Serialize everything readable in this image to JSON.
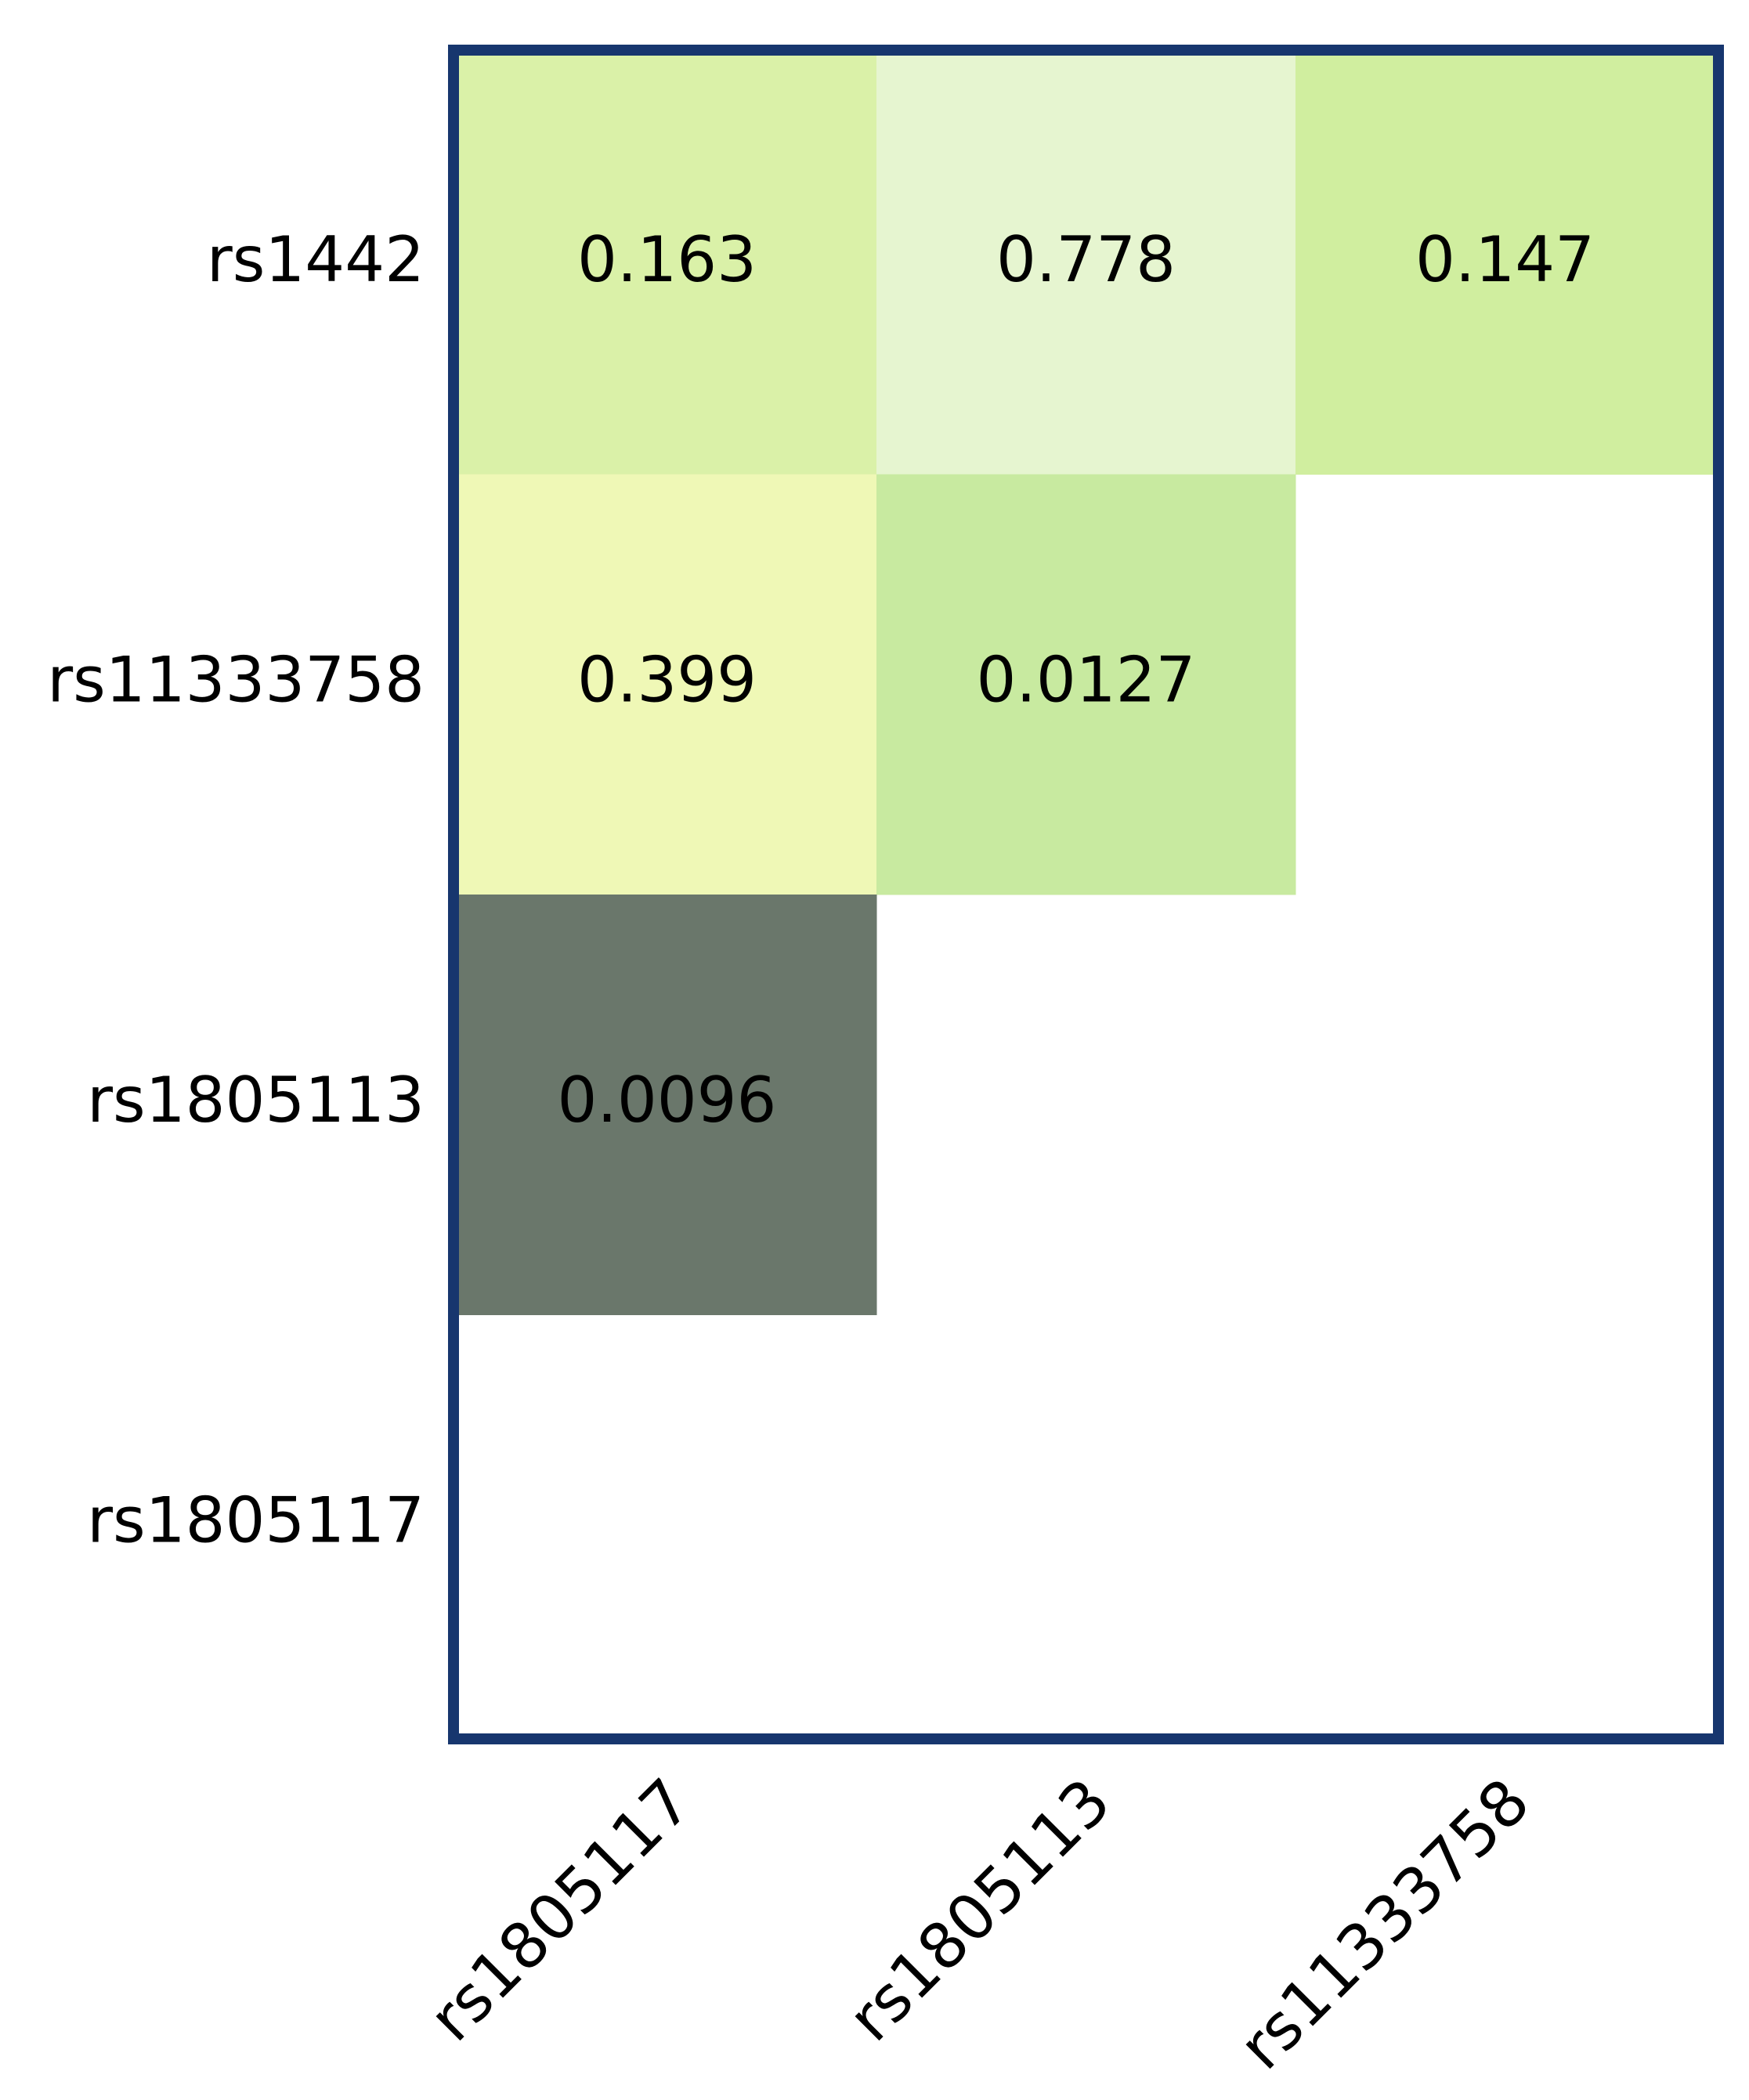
{
  "chart_data": {
    "type": "heatmap",
    "x_categories": [
      "rs1805117",
      "rs1805113",
      "rs11333758"
    ],
    "y_categories": [
      "rs1442",
      "rs11333758",
      "rs1805113",
      "rs1805117"
    ],
    "values": [
      [
        0.163,
        0.778,
        0.147
      ],
      [
        0.399,
        0.0127,
        null
      ],
      [
        0.0096,
        null,
        null
      ],
      [
        null,
        null,
        null
      ]
    ],
    "colors": [
      [
        "#daf1a8",
        "#e6f5d0",
        "#d0ee9f"
      ],
      [
        "#eff8b6",
        "#c8eaa0",
        null
      ],
      [
        "#6a776b",
        null,
        null
      ],
      [
        null,
        null,
        null
      ]
    ],
    "border_color": "#17366e"
  }
}
